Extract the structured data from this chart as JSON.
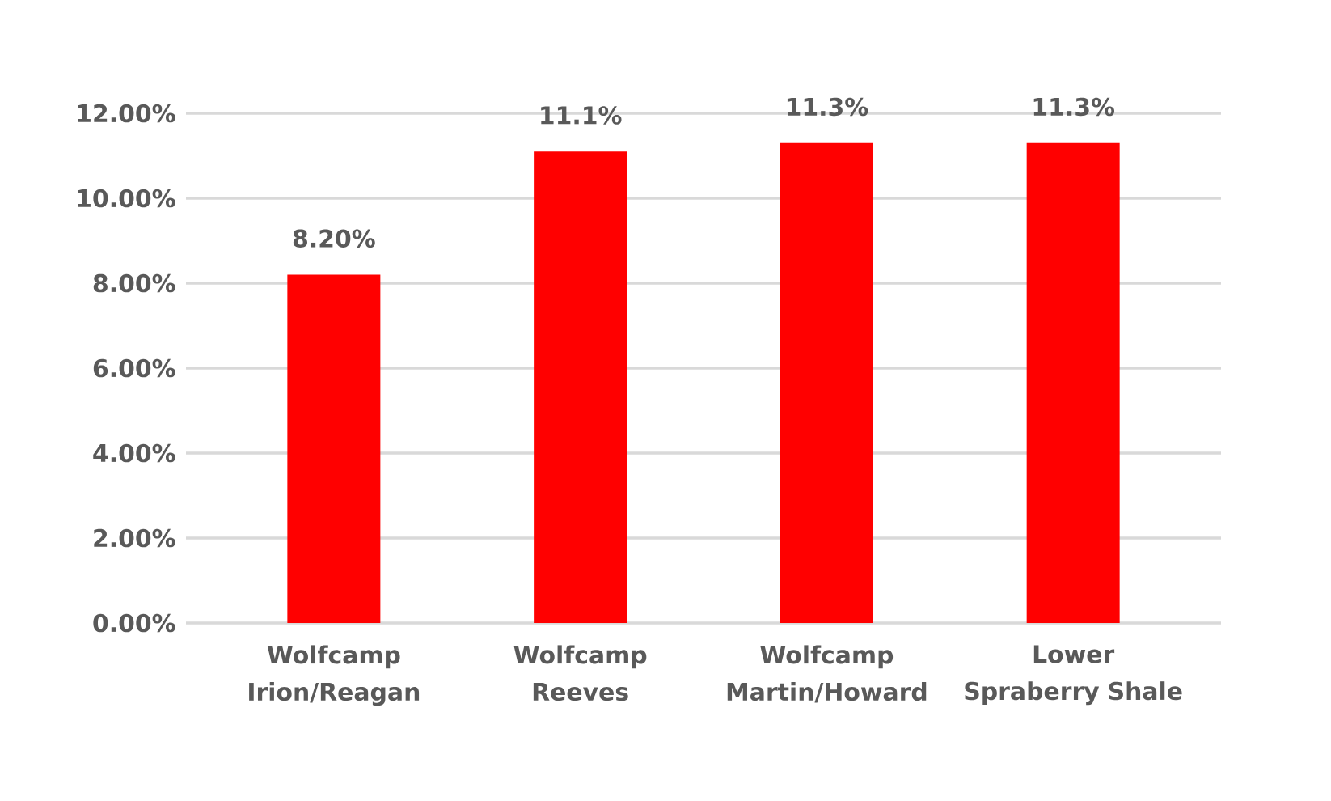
{
  "chart_data": {
    "type": "bar",
    "categories": [
      "Wolfcamp Irion/Reagan",
      "Wolfcamp Reeves",
      "Wolfcamp Martin/Howard",
      "Lower Spraberry Shale"
    ],
    "values": [
      8.2,
      11.1,
      11.3,
      11.3
    ],
    "color": "#ff0000",
    "value_labels": [
      "8.20%",
      "11.1%",
      "11.3%",
      "11.3%"
    ],
    "ylim": [
      0,
      12
    ],
    "yticks": [
      {
        "value": 0,
        "label": "0.00%"
      },
      {
        "value": 2,
        "label": "2.00%"
      },
      {
        "value": 4,
        "label": "4.00%"
      },
      {
        "value": 6,
        "label": "6.00%"
      },
      {
        "value": 8,
        "label": "8.00%"
      },
      {
        "value": 10,
        "label": "10.00%"
      },
      {
        "value": 12,
        "label": "12.00%"
      }
    ],
    "grid": "y"
  }
}
